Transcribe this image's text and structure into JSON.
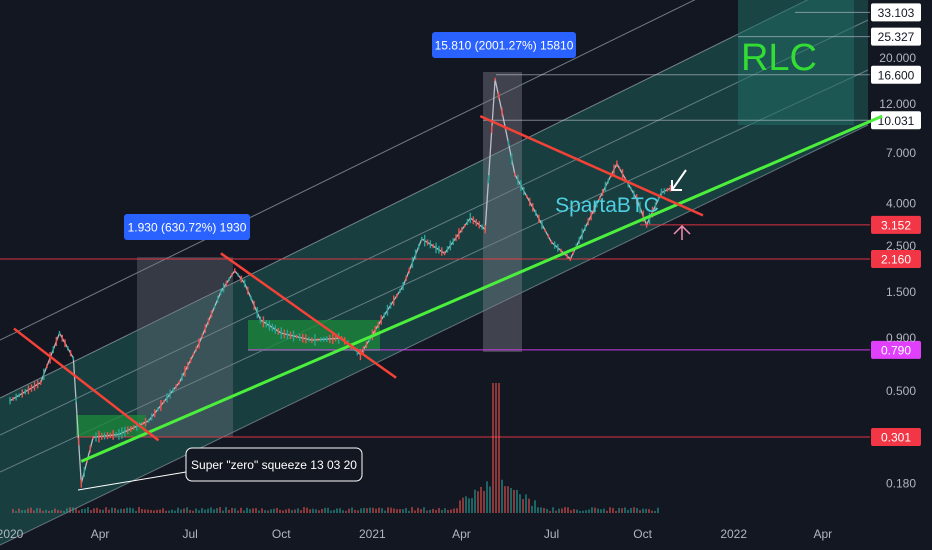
{
  "chart_data": {
    "type": "line",
    "title": "RLC",
    "watermark": "SpartaBTC",
    "scale": "log",
    "x_ticks": [
      "2020",
      "Apr",
      "Jul",
      "Oct",
      "2021",
      "Apr",
      "Jul",
      "Oct",
      "2022",
      "Apr"
    ],
    "y_ticks": [
      "20.000",
      "12.000",
      "7.000",
      "4.000",
      "2.500",
      "1.500",
      "0.900",
      "0.500",
      "0.180"
    ],
    "price_levels": [
      {
        "label": "33.103",
        "value": 33.103,
        "color": "#ffffff"
      },
      {
        "label": "25.327",
        "value": 25.327,
        "color": "#ffffff"
      },
      {
        "label": "16.600",
        "value": 16.6,
        "color": "#ffffff"
      },
      {
        "label": "10.031",
        "value": 10.031,
        "color": "#ffffff"
      },
      {
        "label": "3.152",
        "value": 3.152,
        "color": "#f23645"
      },
      {
        "label": "2.160",
        "value": 2.16,
        "color": "#f23645"
      },
      {
        "label": "0.790",
        "value": 0.79,
        "color": "#e040fb"
      },
      {
        "label": "0.301",
        "value": 0.301,
        "color": "#f23645"
      }
    ],
    "annotations": [
      {
        "text": "1.930 (630.72%) 1930"
      },
      {
        "text": "15.810 (2001.27%) 15810"
      },
      {
        "text": "Super \"zero\" squeeze 13 03 20"
      }
    ],
    "price_series": [
      {
        "t": "2020-01-01",
        "v": 0.45
      },
      {
        "t": "2020-02-01",
        "v": 0.55
      },
      {
        "t": "2020-02-20",
        "v": 0.95
      },
      {
        "t": "2020-03-05",
        "v": 0.72
      },
      {
        "t": "2020-03-13",
        "v": 0.18
      },
      {
        "t": "2020-03-25",
        "v": 0.3
      },
      {
        "t": "2020-04-20",
        "v": 0.31
      },
      {
        "t": "2020-05-20",
        "v": 0.36
      },
      {
        "t": "2020-06-20",
        "v": 0.55
      },
      {
        "t": "2020-07-10",
        "v": 0.85
      },
      {
        "t": "2020-08-01",
        "v": 1.5
      },
      {
        "t": "2020-08-15",
        "v": 1.9
      },
      {
        "t": "2020-08-25",
        "v": 1.65
      },
      {
        "t": "2020-09-10",
        "v": 1.1
      },
      {
        "t": "2020-10-01",
        "v": 0.95
      },
      {
        "t": "2020-11-01",
        "v": 0.88
      },
      {
        "t": "2020-12-01",
        "v": 0.9
      },
      {
        "t": "2020-12-20",
        "v": 0.75
      },
      {
        "t": "2021-01-10",
        "v": 1.1
      },
      {
        "t": "2021-02-01",
        "v": 1.6
      },
      {
        "t": "2021-02-20",
        "v": 2.7
      },
      {
        "t": "2021-03-15",
        "v": 2.3
      },
      {
        "t": "2021-04-10",
        "v": 3.4
      },
      {
        "t": "2021-04-25",
        "v": 3.0
      },
      {
        "t": "2021-05-05",
        "v": 15.8
      },
      {
        "t": "2021-05-12",
        "v": 11.0
      },
      {
        "t": "2021-05-25",
        "v": 5.5
      },
      {
        "t": "2021-06-15",
        "v": 3.6
      },
      {
        "t": "2021-07-01",
        "v": 2.6
      },
      {
        "t": "2021-07-20",
        "v": 2.16
      },
      {
        "t": "2021-08-10",
        "v": 3.5
      },
      {
        "t": "2021-09-05",
        "v": 6.2
      },
      {
        "t": "2021-09-25",
        "v": 4.2
      },
      {
        "t": "2021-10-05",
        "v": 3.15
      },
      {
        "t": "2021-10-20",
        "v": 4.5
      },
      {
        "t": "2021-11-01",
        "v": 4.8
      }
    ],
    "support_line": {
      "from": {
        "t": "2020-03-13",
        "v": 0.23
      },
      "to": {
        "t": "2022-05-31",
        "v": 10.5
      }
    },
    "resistance_lines": [
      {
        "from": {
          "t": "2020-01-05",
          "v": 1.0
        },
        "to": {
          "t": "2020-05-30",
          "v": 0.29
        }
      },
      {
        "from": {
          "t": "2020-08-01",
          "v": 2.3
        },
        "to": {
          "t": "2021-01-25",
          "v": 0.58
        }
      },
      {
        "from": {
          "t": "2021-04-20",
          "v": 10.5
        },
        "to": {
          "t": "2021-12-01",
          "v": 3.5
        }
      }
    ]
  }
}
